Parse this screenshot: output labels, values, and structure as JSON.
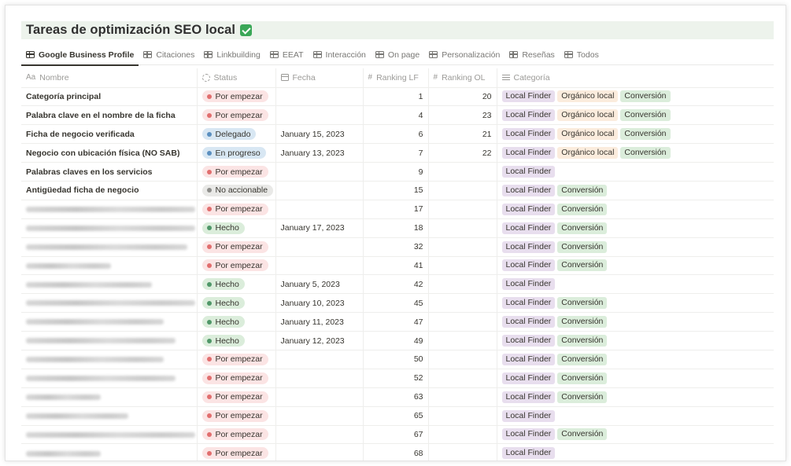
{
  "page": {
    "title": "Tareas de optimización SEO local"
  },
  "tabs": [
    {
      "label": "Google Business Profile",
      "active": true
    },
    {
      "label": "Citaciones",
      "active": false
    },
    {
      "label": "Linkbuilding",
      "active": false
    },
    {
      "label": "EEAT",
      "active": false
    },
    {
      "label": "Interacción",
      "active": false
    },
    {
      "label": "On page",
      "active": false
    },
    {
      "label": "Personalización",
      "active": false
    },
    {
      "label": "Reseñas",
      "active": false
    },
    {
      "label": "Todos",
      "active": false
    }
  ],
  "columns": {
    "name": "Nombre",
    "name_prefix": "Aa",
    "status": "Status",
    "date": "Fecha",
    "rank_lf": "Ranking LF",
    "rank_ol": "Ranking OL",
    "category": "Categoría"
  },
  "status_styles": {
    "Por empezar": {
      "bg": "#fbe4e4",
      "dot": "#e16e6e"
    },
    "Delegado": {
      "bg": "#d8e7f3",
      "dot": "#5a8fbf"
    },
    "En progreso": {
      "bg": "#d8e7f3",
      "dot": "#5a8fbf"
    },
    "No accionable": {
      "bg": "#e9e9e7",
      "dot": "#8e8e8b"
    },
    "Hecho": {
      "bg": "#dbeddb",
      "dot": "#4f9768"
    }
  },
  "tag_styles": {
    "Local Finder": "#e8deee",
    "Orgánico local": "#fbecdd",
    "Conversión": "#dbeddb"
  },
  "rows": [
    {
      "name": "Categoría principal",
      "blurred": false,
      "status": "Por empezar",
      "date": "",
      "lf": "1",
      "ol": "20",
      "tags": [
        "Local Finder",
        "Orgánico local",
        "Conversión"
      ]
    },
    {
      "name": "Palabra clave en el nombre de la ficha",
      "blurred": false,
      "status": "Por empezar",
      "date": "",
      "lf": "4",
      "ol": "23",
      "tags": [
        "Local Finder",
        "Orgánico local",
        "Conversión"
      ]
    },
    {
      "name": "Ficha de negocio verificada",
      "blurred": false,
      "status": "Delegado",
      "date": "January 15, 2023",
      "lf": "6",
      "ol": "21",
      "tags": [
        "Local Finder",
        "Orgánico local",
        "Conversión"
      ]
    },
    {
      "name": "Negocio con ubicación física (NO SAB)",
      "blurred": false,
      "status": "En progreso",
      "date": "January 13, 2023",
      "lf": "7",
      "ol": "22",
      "tags": [
        "Local Finder",
        "Orgánico local",
        "Conversión"
      ]
    },
    {
      "name": "Palabras claves en los servicios",
      "blurred": false,
      "status": "Por empezar",
      "date": "",
      "lf": "9",
      "ol": "",
      "tags": [
        "Local Finder"
      ]
    },
    {
      "name": "Antigüedad ficha de negocio",
      "blurred": false,
      "status": "No accionable",
      "date": "",
      "lf": "15",
      "ol": "",
      "tags": [
        "Local Finder",
        "Conversión"
      ]
    },
    {
      "name": "",
      "blurred": true,
      "blur_w": 215,
      "status": "Por empezar",
      "date": "",
      "lf": "17",
      "ol": "",
      "tags": [
        "Local Finder",
        "Conversión"
      ]
    },
    {
      "name": "",
      "blurred": true,
      "blur_w": 215,
      "status": "Hecho",
      "date": "January 17, 2023",
      "lf": "18",
      "ol": "",
      "tags": [
        "Local Finder",
        "Conversión"
      ]
    },
    {
      "name": "",
      "blurred": true,
      "blur_w": 205,
      "status": "Por empezar",
      "date": "",
      "lf": "32",
      "ol": "",
      "tags": [
        "Local Finder",
        "Conversión"
      ]
    },
    {
      "name": "",
      "blurred": true,
      "blur_w": 108,
      "status": "Por empezar",
      "date": "",
      "lf": "41",
      "ol": "",
      "tags": [
        "Local Finder",
        "Conversión"
      ]
    },
    {
      "name": "",
      "blurred": true,
      "blur_w": 160,
      "status": "Hecho",
      "date": "January 5, 2023",
      "lf": "42",
      "ol": "",
      "tags": [
        "Local Finder"
      ]
    },
    {
      "name": "",
      "blurred": true,
      "blur_w": 215,
      "status": "Hecho",
      "date": "January 10, 2023",
      "lf": "45",
      "ol": "",
      "tags": [
        "Local Finder",
        "Conversión"
      ]
    },
    {
      "name": "",
      "blurred": true,
      "blur_w": 175,
      "status": "Hecho",
      "date": "January 11, 2023",
      "lf": "47",
      "ol": "",
      "tags": [
        "Local Finder",
        "Conversión"
      ]
    },
    {
      "name": "",
      "blurred": true,
      "blur_w": 190,
      "status": "Hecho",
      "date": "January 12, 2023",
      "lf": "49",
      "ol": "",
      "tags": [
        "Local Finder",
        "Conversión"
      ]
    },
    {
      "name": "",
      "blurred": true,
      "blur_w": 175,
      "status": "Por empezar",
      "date": "",
      "lf": "50",
      "ol": "",
      "tags": [
        "Local Finder",
        "Conversión"
      ]
    },
    {
      "name": "",
      "blurred": true,
      "blur_w": 190,
      "status": "Por empezar",
      "date": "",
      "lf": "52",
      "ol": "",
      "tags": [
        "Local Finder",
        "Conversión"
      ]
    },
    {
      "name": "",
      "blurred": true,
      "blur_w": 95,
      "status": "Por empezar",
      "date": "",
      "lf": "63",
      "ol": "",
      "tags": [
        "Local Finder",
        "Conversión"
      ]
    },
    {
      "name": "",
      "blurred": true,
      "blur_w": 130,
      "status": "Por empezar",
      "date": "",
      "lf": "65",
      "ol": "",
      "tags": [
        "Local Finder"
      ]
    },
    {
      "name": "",
      "blurred": true,
      "blur_w": 215,
      "status": "Por empezar",
      "date": "",
      "lf": "67",
      "ol": "",
      "tags": [
        "Local Finder",
        "Conversión"
      ]
    },
    {
      "name": "",
      "blurred": true,
      "blur_w": 95,
      "status": "Por empezar",
      "date": "",
      "lf": "68",
      "ol": "",
      "tags": [
        "Local Finder"
      ]
    }
  ]
}
